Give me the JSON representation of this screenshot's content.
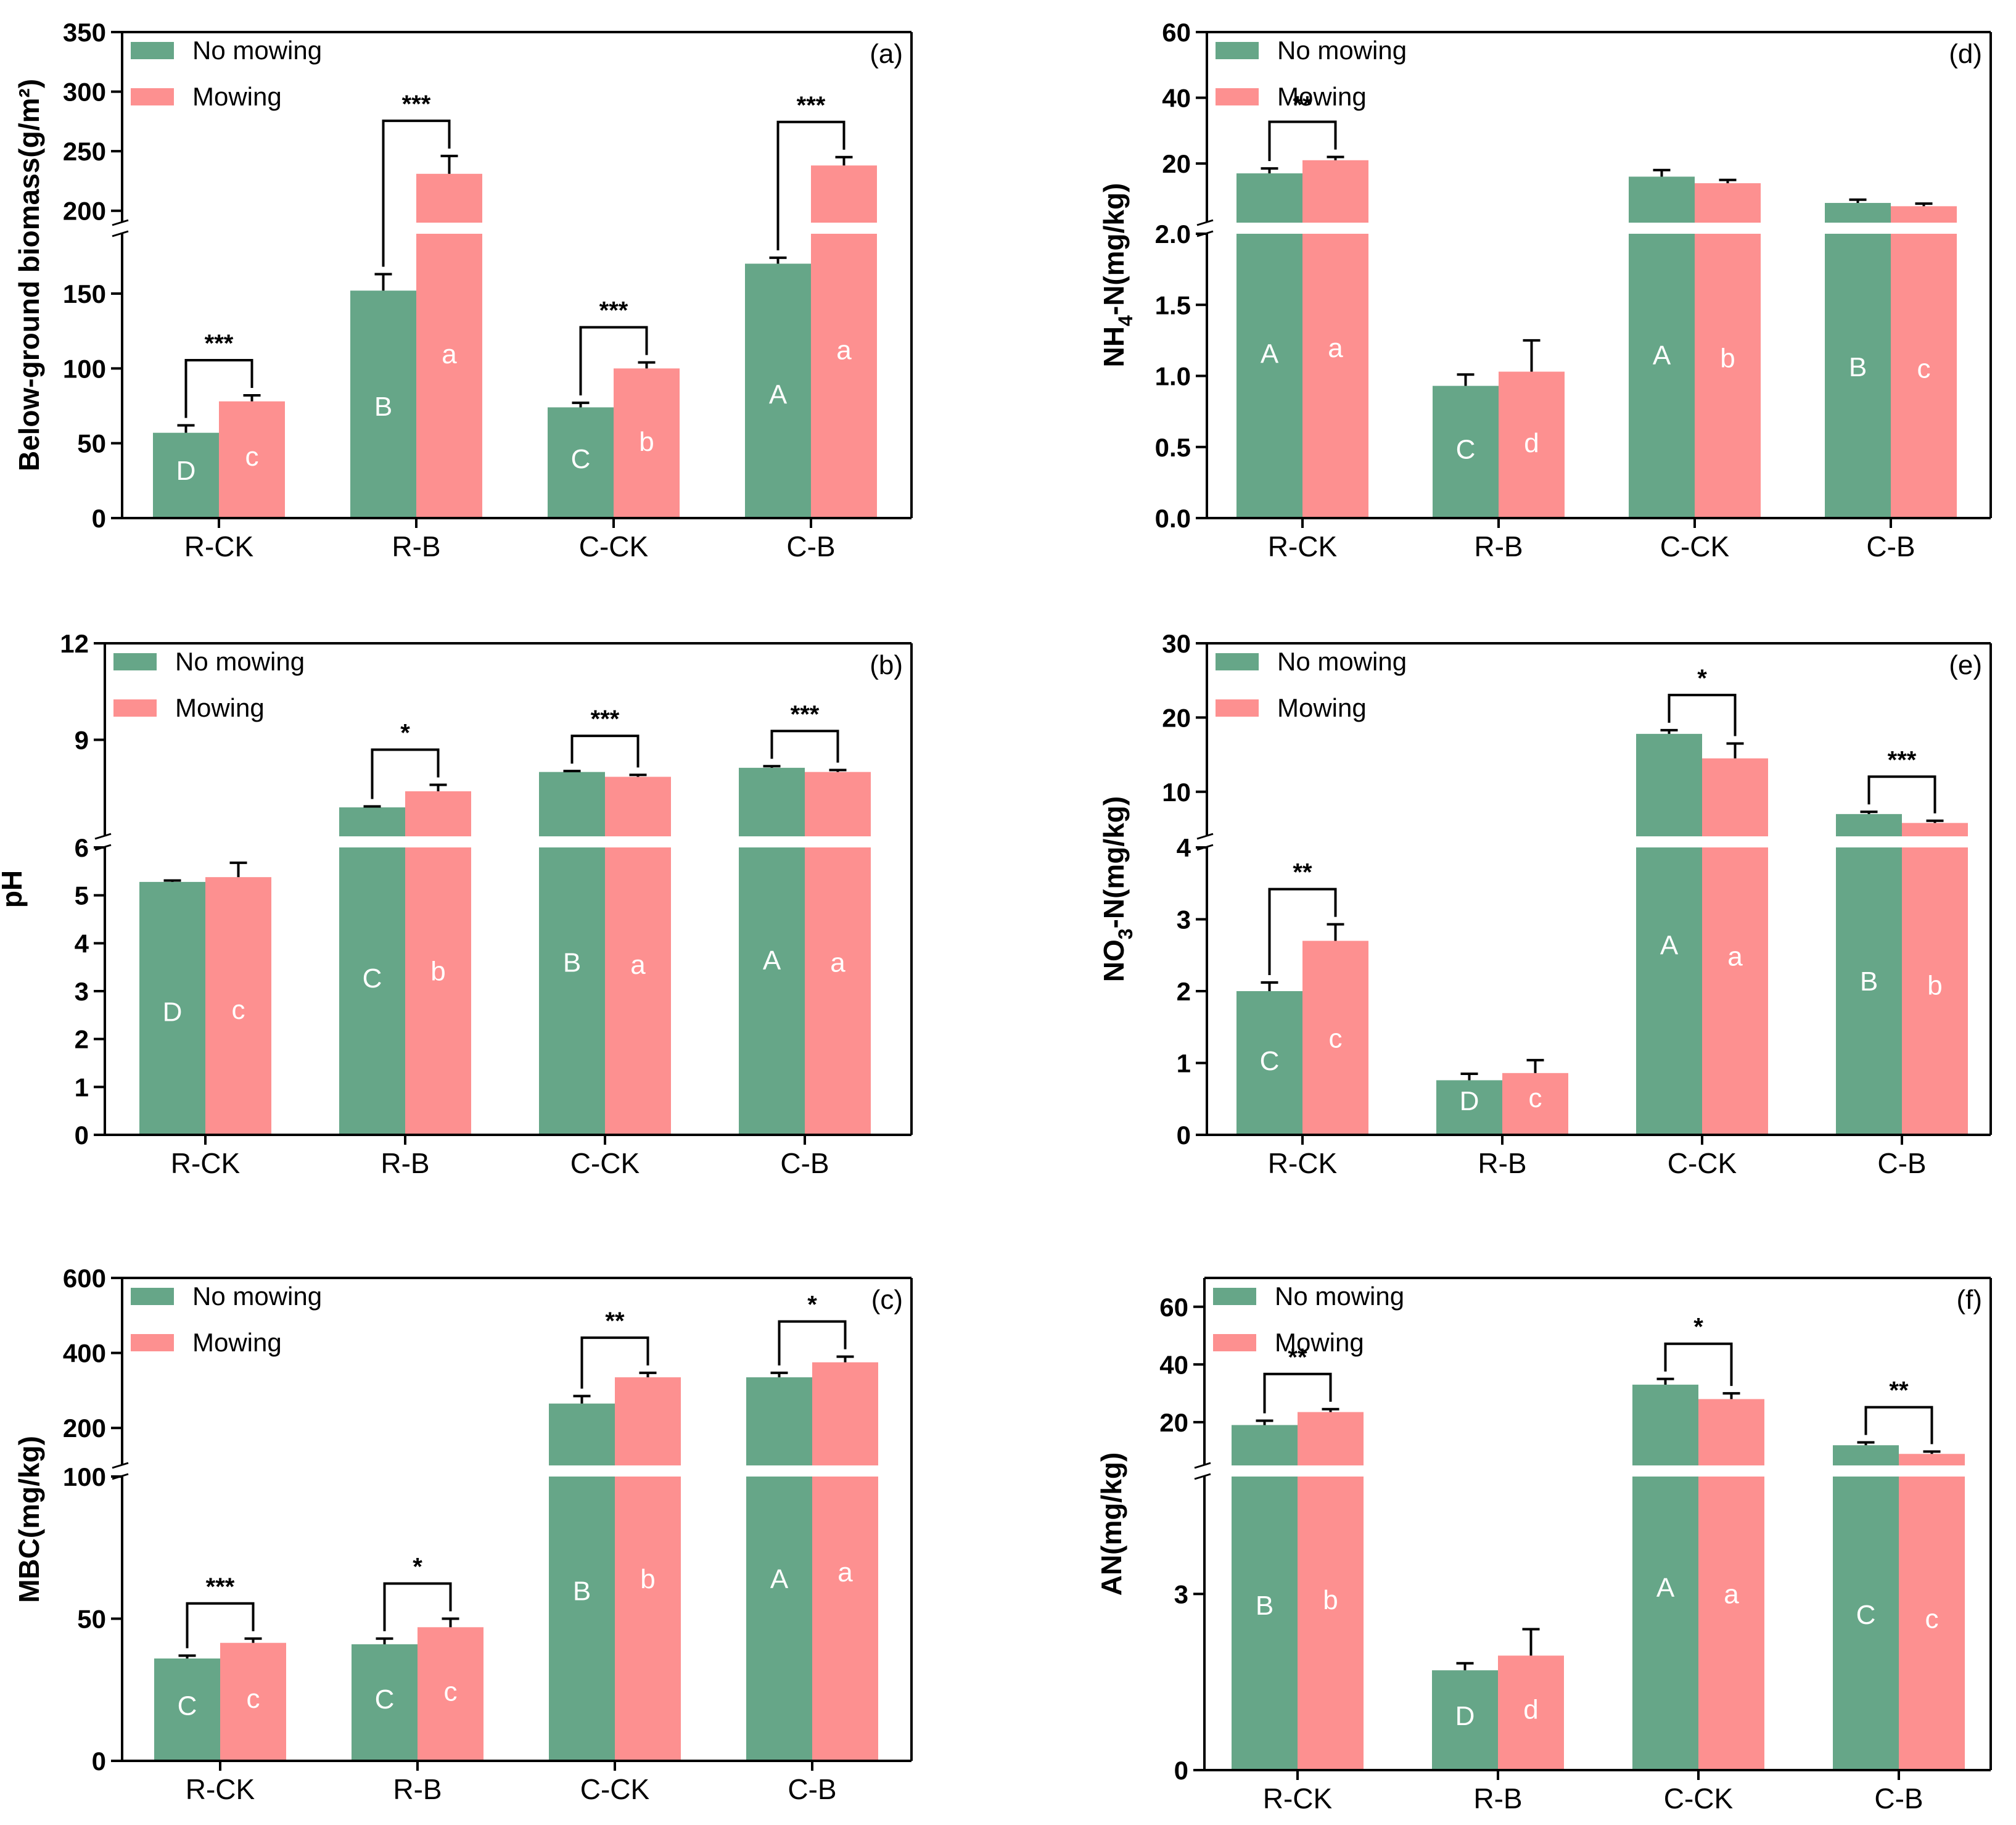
{
  "legend": {
    "no_mowing": "No mowing",
    "mowing": "Mowing"
  },
  "colors": {
    "no_mowing": "#66a688",
    "mowing": "#fd9090",
    "axis": "#000000",
    "letters": "#ffffff"
  },
  "chart_data": [
    {
      "type": "bar",
      "panel_label": "(a)",
      "ylabel": "Below-ground biomass(g/m²)",
      "categories": [
        "R-CK",
        "R-B",
        "C-CK",
        "C-B"
      ],
      "y_break": true,
      "ylim_lower": [
        0,
        190
      ],
      "yticks_lower": [
        "0",
        "50",
        "100",
        "150"
      ],
      "ylim_upper": [
        190,
        350
      ],
      "yticks_upper": [
        "200",
        "250",
        "300",
        "350"
      ],
      "series": [
        {
          "name": "No mowing",
          "values": [
            57,
            152,
            74,
            170
          ],
          "errors": [
            5,
            11,
            3,
            4
          ],
          "letters": [
            "D",
            "B",
            "C",
            "A"
          ]
        },
        {
          "name": "Mowing",
          "values": [
            78,
            231,
            100,
            238
          ],
          "errors": [
            4,
            15,
            4,
            7
          ],
          "letters": [
            "c",
            "a",
            "b",
            "a"
          ]
        }
      ],
      "significance": [
        "***",
        "***",
        "***",
        "***"
      ]
    },
    {
      "type": "bar",
      "panel_label": "(b)",
      "ylabel": "pH",
      "categories": [
        "R-CK",
        "R-B",
        "C-CK",
        "C-B"
      ],
      "y_break": true,
      "ylim_lower": [
        0,
        6
      ],
      "yticks_lower": [
        "0",
        "1",
        "2",
        "3",
        "4",
        "5",
        "6"
      ],
      "ylim_upper": [
        6,
        12
      ],
      "yticks_upper": [
        "9",
        "12"
      ],
      "series": [
        {
          "name": "No mowing",
          "values": [
            5.28,
            6.9,
            8.0,
            8.13
          ],
          "errors": [
            0.03,
            0.03,
            0.03,
            0.05
          ],
          "letters": [
            "D",
            "C",
            "B",
            "A"
          ]
        },
        {
          "name": "Mowing",
          "values": [
            5.38,
            7.4,
            7.85,
            8.0
          ],
          "errors": [
            0.3,
            0.2,
            0.06,
            0.06
          ],
          "letters": [
            "c",
            "b",
            "a",
            "a"
          ]
        }
      ],
      "significance": [
        "",
        "*",
        "***",
        "***"
      ]
    },
    {
      "type": "bar",
      "panel_label": "(c)",
      "ylabel": "MBC(mg/kg)",
      "categories": [
        "R-CK",
        "R-B",
        "C-CK",
        "C-B"
      ],
      "y_break": true,
      "ylim_lower": [
        0,
        100
      ],
      "yticks_lower": [
        "0",
        "50",
        "100"
      ],
      "ylim_upper": [
        100,
        600
      ],
      "yticks_upper": [
        "200",
        "400",
        "600"
      ],
      "series": [
        {
          "name": "No mowing",
          "values": [
            36,
            41,
            265,
            335
          ],
          "errors": [
            1,
            2,
            20,
            12
          ],
          "letters": [
            "C",
            "C",
            "B",
            "A"
          ]
        },
        {
          "name": "Mowing",
          "values": [
            41.5,
            47,
            335,
            375
          ],
          "errors": [
            1.5,
            3,
            12,
            15
          ],
          "letters": [
            "c",
            "c",
            "b",
            "a"
          ]
        }
      ],
      "significance": [
        "***",
        "*",
        "**",
        "*"
      ]
    },
    {
      "type": "bar",
      "panel_label": "(d)",
      "ylabel": "NH4-N(mg/kg)",
      "ylabel_main": "NH",
      "ylabel_sub": "4",
      "ylabel_rest": "-N(mg/kg)",
      "categories": [
        "R-CK",
        "R-B",
        "C-CK",
        "C-B"
      ],
      "y_break": true,
      "ylim_lower": [
        0,
        2.0
      ],
      "yticks_lower": [
        "0.0",
        "0.5",
        "1.0",
        "1.5",
        "2.0"
      ],
      "ylim_upper": [
        2.0,
        60
      ],
      "yticks_upper": [
        "20",
        "40",
        "60"
      ],
      "series": [
        {
          "name": "No mowing",
          "values": [
            17,
            0.93,
            16,
            8
          ],
          "errors": [
            1.5,
            0.08,
            2,
            1
          ],
          "letters": [
            "A",
            "C",
            "A",
            "B"
          ]
        },
        {
          "name": "Mowing",
          "values": [
            21,
            1.03,
            14,
            7
          ],
          "errors": [
            1,
            0.22,
            1,
            0.8
          ],
          "letters": [
            "a",
            "d",
            "b",
            "c"
          ]
        }
      ],
      "significance": [
        "**",
        "",
        "",
        ""
      ]
    },
    {
      "type": "bar",
      "panel_label": "(e)",
      "ylabel": "NO3-N(mg/kg)",
      "ylabel_main": "NO",
      "ylabel_sub": "3",
      "ylabel_rest": "-N(mg/kg)",
      "categories": [
        "R-CK",
        "R-B",
        "C-CK",
        "C-B"
      ],
      "y_break": true,
      "ylim_lower": [
        0,
        4
      ],
      "yticks_lower": [
        "0",
        "1",
        "2",
        "3",
        "4"
      ],
      "ylim_upper": [
        4,
        30
      ],
      "yticks_upper": [
        "10",
        "20",
        "30"
      ],
      "series": [
        {
          "name": "No mowing",
          "values": [
            2.0,
            0.76,
            17.8,
            7.0
          ],
          "errors": [
            0.12,
            0.09,
            0.5,
            0.3
          ],
          "letters": [
            "C",
            "D",
            "A",
            "B"
          ]
        },
        {
          "name": "Mowing",
          "values": [
            2.7,
            0.86,
            14.5,
            5.8
          ],
          "errors": [
            0.23,
            0.18,
            2.0,
            0.3
          ],
          "letters": [
            "c",
            "c",
            "a",
            "b"
          ]
        }
      ],
      "significance": [
        "**",
        "",
        "*",
        "***"
      ]
    },
    {
      "type": "bar",
      "panel_label": "(f)",
      "ylabel": "AN(mg/kg)",
      "categories": [
        "R-CK",
        "R-B",
        "C-CK",
        "C-B"
      ],
      "y_break": true,
      "ylim_lower": [
        0,
        5
      ],
      "yticks_lower": [
        "0",
        "3"
      ],
      "ylim_upper": [
        5,
        70
      ],
      "yticks_upper": [
        "20",
        "40",
        "60"
      ],
      "series": [
        {
          "name": "No mowing",
          "values": [
            19,
            1.7,
            33,
            12
          ],
          "errors": [
            1.5,
            0.12,
            2,
            1
          ],
          "letters": [
            "B",
            "D",
            "A",
            "C"
          ]
        },
        {
          "name": "Mowing",
          "values": [
            23.5,
            1.95,
            28,
            9
          ],
          "errors": [
            1,
            0.45,
            2,
            0.8
          ],
          "letters": [
            "b",
            "d",
            "a",
            "c"
          ]
        }
      ],
      "significance": [
        "**",
        "",
        "*",
        "**"
      ]
    }
  ]
}
